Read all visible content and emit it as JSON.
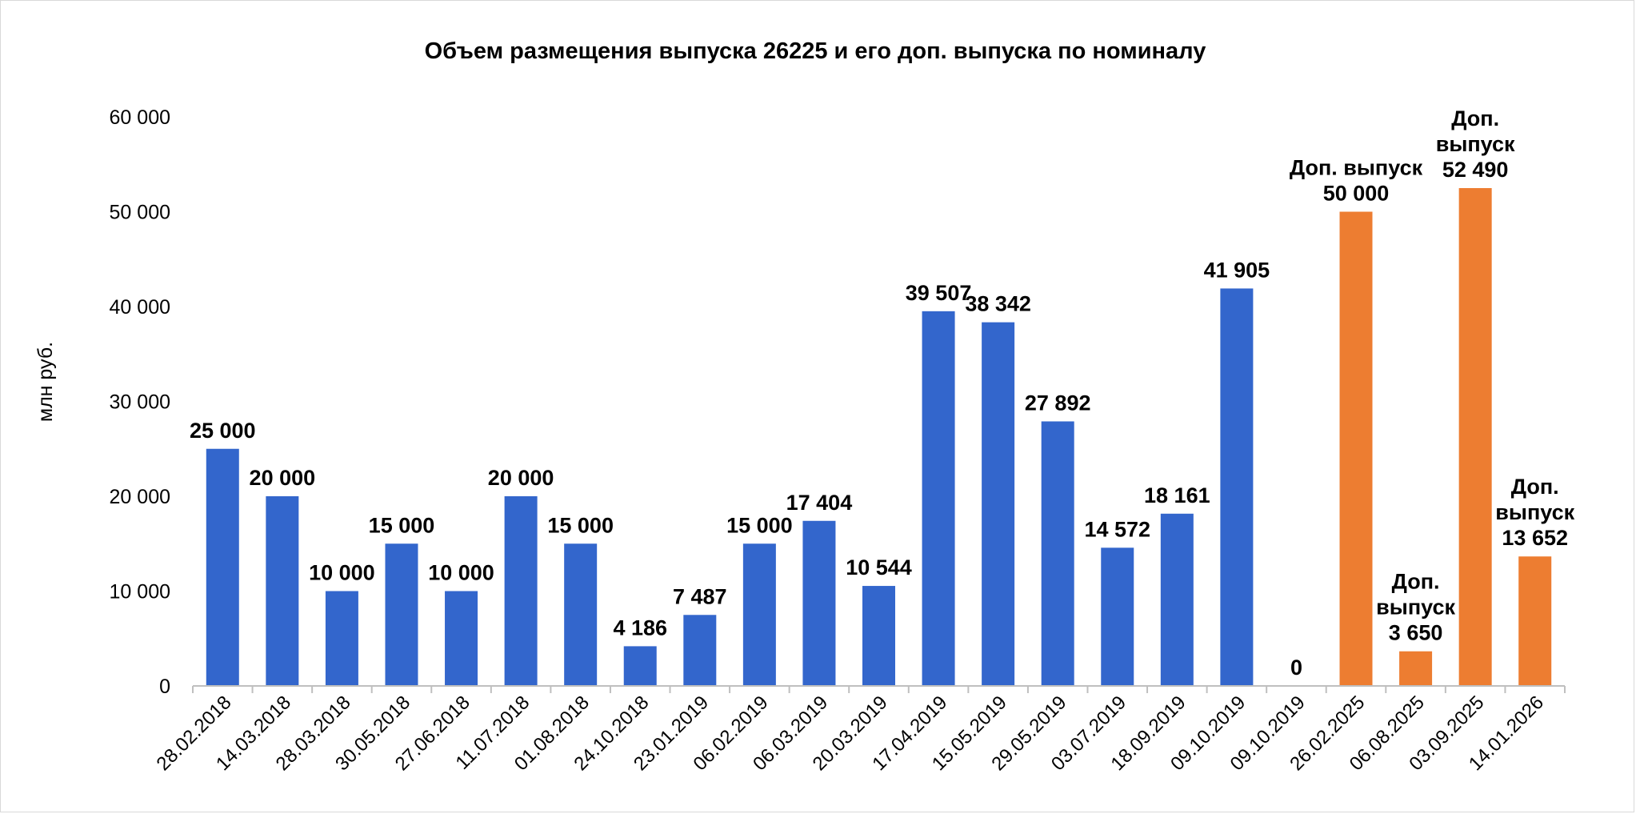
{
  "chart_data": {
    "type": "bar",
    "title": "Объем размещения  выпуска 26225 и его доп. выпуска по номиналу",
    "ylabel": "млн руб.",
    "xlabel": "",
    "ylim": [
      0,
      60000
    ],
    "yticks": [
      0,
      10000,
      20000,
      30000,
      40000,
      50000,
      60000
    ],
    "ytick_labels": [
      "0",
      "10 000",
      "20 000",
      "30 000",
      "40 000",
      "50 000",
      "60 000"
    ],
    "grid": false,
    "legend": "none",
    "colors": {
      "main": "#3366cc",
      "additional": "#ed7d31"
    },
    "categories": [
      "28.02.2018",
      "14.03.2018",
      "28.03.2018",
      "30.05.2018",
      "27.06.2018",
      "11.07.2018",
      "01.08.2018",
      "24.10.2018",
      "23.01.2019",
      "06.02.2019",
      "06.03.2019",
      "20.03.2019",
      "17.04.2019",
      "15.05.2019",
      "29.05.2019",
      "03.07.2019",
      "18.09.2019",
      "09.10.2019",
      "09.10.2019",
      "26.02.2025",
      "06.08.2025",
      "03.09.2025",
      "14.01.2026"
    ],
    "values": [
      25000,
      20000,
      10000,
      15000,
      10000,
      20000,
      15000,
      4186,
      7487,
      15000,
      17404,
      10544,
      39507,
      38342,
      27892,
      14572,
      18161,
      41905,
      0,
      50000,
      3650,
      52490,
      13652
    ],
    "bar_group": [
      "main",
      "main",
      "main",
      "main",
      "main",
      "main",
      "main",
      "main",
      "main",
      "main",
      "main",
      "main",
      "main",
      "main",
      "main",
      "main",
      "main",
      "main",
      "main",
      "additional",
      "additional",
      "additional",
      "additional"
    ],
    "data_labels": [
      [
        "25 000"
      ],
      [
        "20 000"
      ],
      [
        "10 000"
      ],
      [
        "15 000"
      ],
      [
        "10 000"
      ],
      [
        "20 000"
      ],
      [
        "15 000"
      ],
      [
        "4 186"
      ],
      [
        "7 487"
      ],
      [
        "15 000"
      ],
      [
        "17 404"
      ],
      [
        "10 544"
      ],
      [
        "39 507"
      ],
      [
        "38 342"
      ],
      [
        "27 892"
      ],
      [
        "14 572"
      ],
      [
        "18 161"
      ],
      [
        "41 905"
      ],
      [
        "0"
      ],
      [
        "Доп. выпуск",
        "50 000"
      ],
      [
        "Доп.",
        "выпуск",
        "3 650"
      ],
      [
        "Доп.",
        "выпуск",
        "52 490"
      ],
      [
        "Доп.",
        "выпуск",
        "13 652"
      ]
    ]
  }
}
